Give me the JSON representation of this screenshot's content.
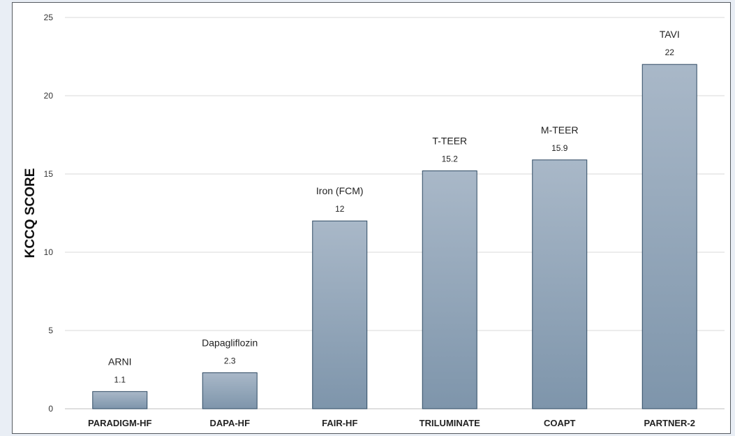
{
  "chart_data": {
    "type": "bar",
    "title": "",
    "xlabel": "",
    "ylabel": "KCCQ SCORE",
    "ylim": [
      0,
      25
    ],
    "yticks": [
      0,
      5,
      10,
      15,
      20,
      25
    ],
    "grid": true,
    "categories": [
      "PARADIGM-HF",
      "DAPA-HF",
      "FAIR-HF",
      "TRILUMINATE",
      "COAPT",
      "PARTNER-2"
    ],
    "values": [
      1.1,
      2.3,
      12,
      15.2,
      15.9,
      22
    ],
    "data_labels": [
      "1.1",
      "2.3",
      "12",
      "15.2",
      "15.9",
      "22"
    ],
    "annotations": [
      "ARNI",
      "Dapagliflozin",
      "Iron (FCM)",
      "T-TEER",
      "M-TEER",
      "TAVI"
    ],
    "colors": {
      "bar_top": "#a9b8c8",
      "bar_bottom": "#7e95ab",
      "bar_stroke": "#2f4a63",
      "grid": "#d9d9d9",
      "axis": "#bfbfbf"
    }
  }
}
